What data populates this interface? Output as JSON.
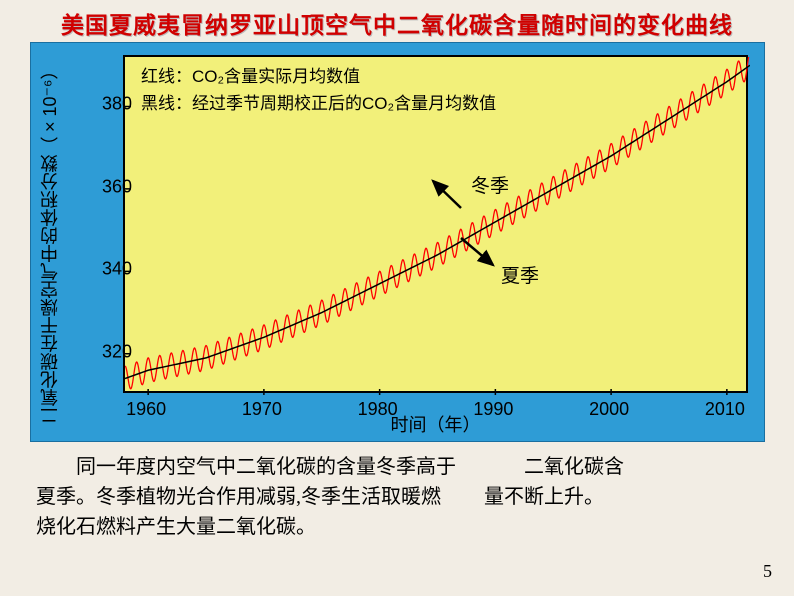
{
  "title": "美国夏威夷冒纳罗亚山顶空气中二氧化碳含量随时间的变化曲线",
  "chart": {
    "type": "line",
    "background_color_outer": "#2e9cd6",
    "background_color_plot": "#f2f07a",
    "yaxis_label": "二氧化碳在干燥空气中的体积分数（×10⁻⁶）",
    "xaxis_label": "时间（年）",
    "xlim": [
      1958,
      2012
    ],
    "ylim": [
      310,
      392
    ],
    "xticks": [
      1960,
      1970,
      1980,
      1990,
      2000,
      2010
    ],
    "yticks": [
      320,
      340,
      360,
      380
    ],
    "trend_color": "#000000",
    "trend_width": 1.5,
    "seasonal_color": "#ff0000",
    "seasonal_width": 1.3,
    "seasonal_amplitude": 3.0,
    "trend_points": [
      {
        "x": 1958,
        "y": 314
      },
      {
        "x": 1960,
        "y": 316
      },
      {
        "x": 1965,
        "y": 319
      },
      {
        "x": 1970,
        "y": 324
      },
      {
        "x": 1975,
        "y": 330
      },
      {
        "x": 1980,
        "y": 337
      },
      {
        "x": 1985,
        "y": 344
      },
      {
        "x": 1990,
        "y": 352
      },
      {
        "x": 1995,
        "y": 360
      },
      {
        "x": 2000,
        "y": 368
      },
      {
        "x": 2005,
        "y": 377
      },
      {
        "x": 2010,
        "y": 386
      },
      {
        "x": 2012,
        "y": 390
      }
    ],
    "legend_line1": "红线：CO₂含量实际月均数值",
    "legend_line2": "黑线：经过季节周期校正后的CO₂含量月均数值",
    "annot_winter": "冬季",
    "annot_summer": "夏季"
  },
  "body_left": "　　同一年度内空气中二氧化碳的含量冬季高于夏季。冬季植物光合作用减弱,冬季生活取暖燃烧化石燃料产生大量二氧化碳。",
  "body_right": "　　二氧化碳含量不断上升。",
  "page_number": "5",
  "colors": {
    "page_bg": "#f2ede4",
    "title_color": "#d00000"
  }
}
